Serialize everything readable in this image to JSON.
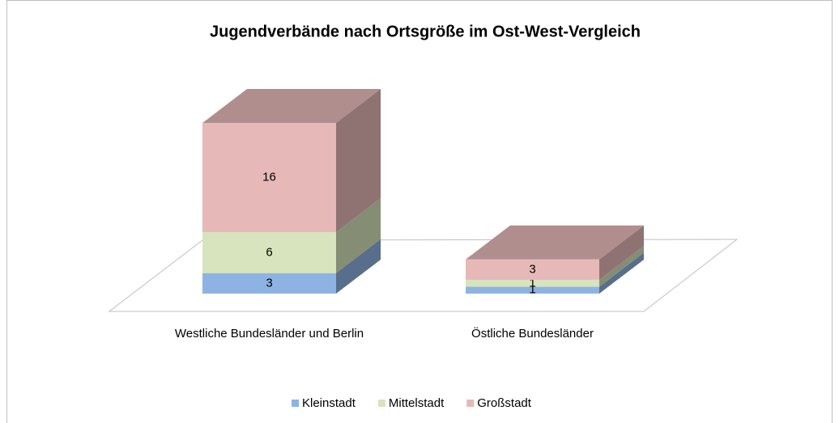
{
  "chart_data": {
    "type": "bar3d_stacked",
    "title": "Jugendverbände nach Ortsgröße im Ost-West-Vergleich",
    "categories": [
      "Westliche Bundesländer und Berlin",
      "Östliche Bundesländer"
    ],
    "series": [
      {
        "name": "Kleinstadt",
        "color": "#8db3e2",
        "values": [
          3,
          1
        ]
      },
      {
        "name": "Mittelstadt",
        "color": "#d7e4bd",
        "values": [
          6,
          1
        ]
      },
      {
        "name": "Großstadt",
        "color": "#e6b9b8",
        "values": [
          16,
          3
        ]
      }
    ],
    "legend": "bottom"
  }
}
